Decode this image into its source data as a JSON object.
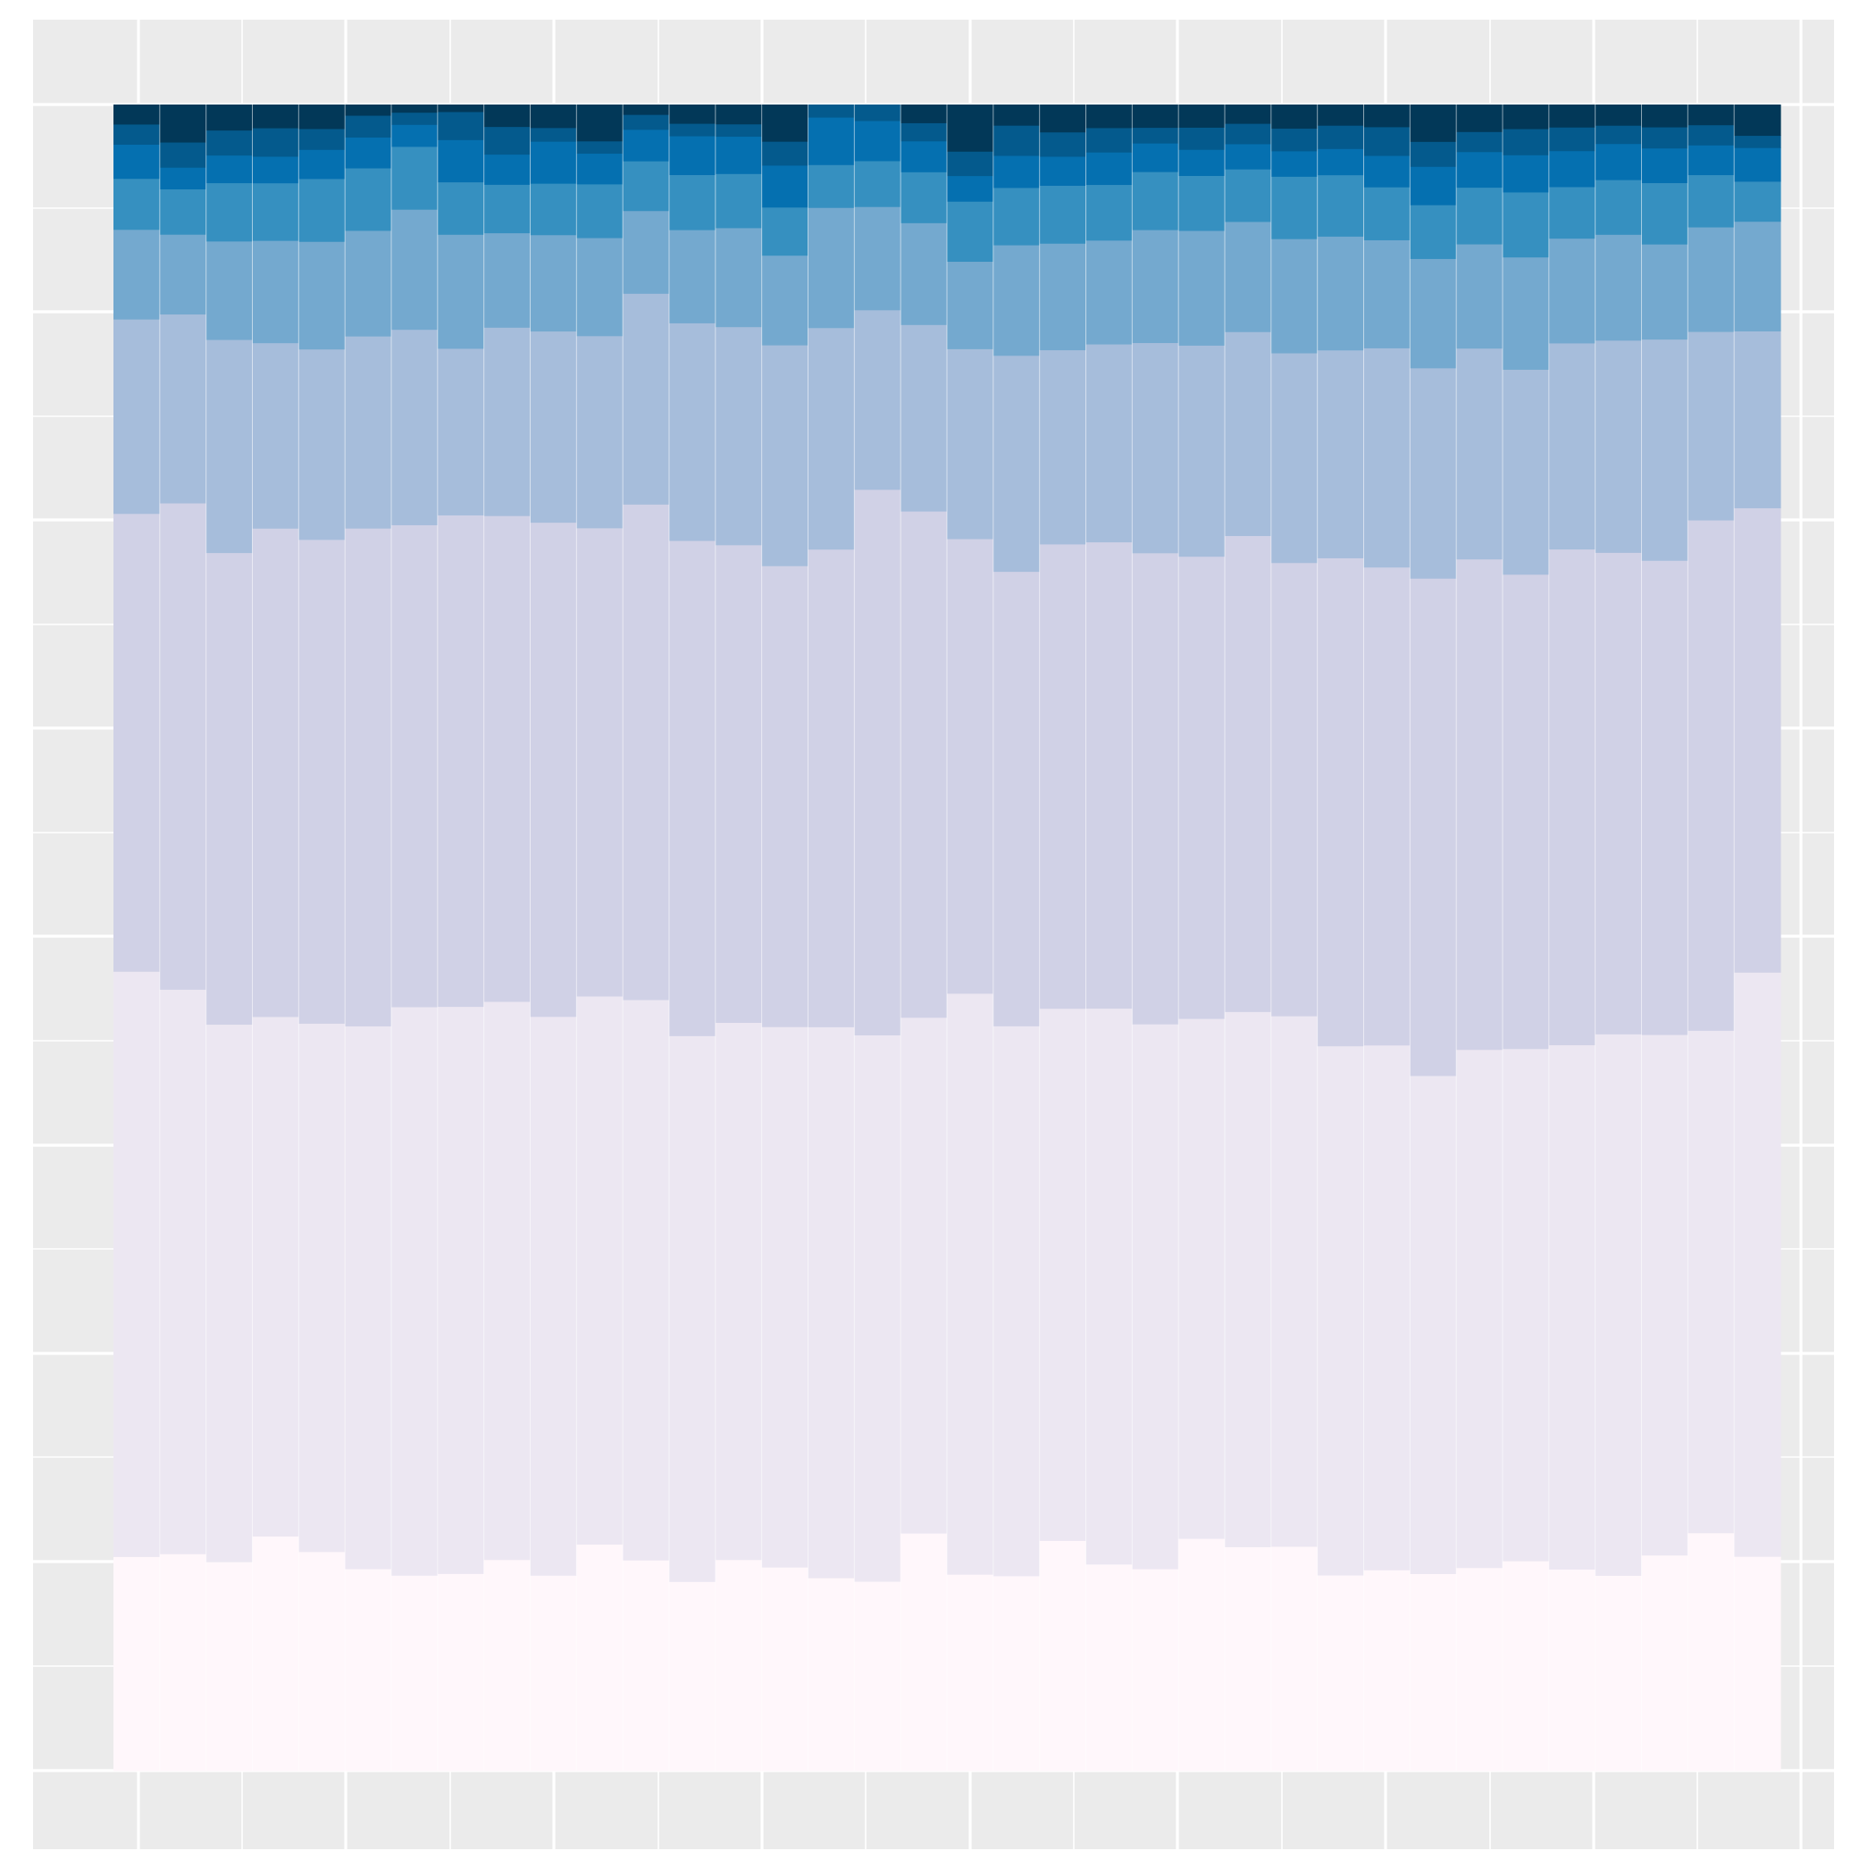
{
  "chart_data": {
    "type": "bar",
    "stacking": "fill",
    "title": "",
    "xlabel": "",
    "ylabel": "",
    "ylim": [
      0,
      1
    ],
    "grid": true,
    "legend": "none",
    "background": "#EBEBEB",
    "gridline_color": "#FFFFFF",
    "x_bins": 36,
    "series": [
      {
        "color": "#FFF7FB",
        "values": [
          0.1285,
          0.1302,
          0.1254,
          0.1394,
          0.1315,
          0.1212,
          0.1173,
          0.1181,
          0.1281,
          0.1173,
          0.1365,
          0.1284,
          0.1151,
          0.1267,
          0.121,
          0.1125,
          0.1137,
          0.14,
          0.1151,
          0.1173,
          0.138,
          0.1236,
          0.1214,
          0.1415,
          0.136,
          0.1367,
          0.1157,
          0.1169,
          0.1161,
          0.1204,
          0.1246,
          0.1193,
          0.1153,
          0.1265,
          0.1402,
          0.1247
        ]
      },
      {
        "color": "#ECE7F2",
        "values": [
          0.3513,
          0.3388,
          0.3226,
          0.3087,
          0.3171,
          0.3258,
          0.3412,
          0.3397,
          0.3387,
          0.3354,
          0.3304,
          0.3415,
          0.3321,
          0.3224,
          0.3211,
          0.3214,
          0.328,
          0.3039,
          0.3403,
          0.3309,
          0.319,
          0.3325,
          0.3276,
          0.3168,
          0.3251,
          0.3233,
          0.3129,
          0.3055,
          0.2934,
          0.3072,
          0.3042,
          0.3104,
          0.3197,
          0.3054,
          0.2961,
          0.3399
        ]
      },
      {
        "color": "#D0D1E6",
        "values": [
          0.2748,
          0.2919,
          0.2831,
          0.2902,
          0.2904,
          0.2988,
          0.2893,
          0.2944,
          0.2948,
          0.2966,
          0.2822,
          0.302,
          0.3013,
          0.2867,
          0.2739,
          0.2786,
          0.3275,
          0.2983,
          0.2663,
          0.2735,
          0.2784,
          0.279,
          0.2833,
          0.2816,
          0.2891,
          0.2762,
          0.2886,
          0.2782,
          0.293,
          0.2908,
          0.2817,
          0.2935,
          0.2843,
          0.2782,
          0.3008,
          0.2702
        ]
      },
      {
        "color": "#A6BDDB",
        "values": [
          0.1167,
          0.1134,
          0.1279,
          0.1102,
          0.1143,
          0.1153,
          0.1173,
          0.0998,
          0.1143,
          0.1148,
          0.1158,
          0.1285,
          0.1324,
          0.1309,
          0.1312,
          0.1292,
          0.1078,
          0.1099,
          0.1113,
          0.13,
          0.1164,
          0.1184,
          0.1264,
          0.1286,
          0.1239,
          0.1278,
          0.1229,
          0.1276,
          0.1239,
          0.125,
          0.1217,
          0.122,
          0.1253,
          0.1298,
          0.1111,
          0.1029
        ]
      },
      {
        "color": "#74A9CF",
        "values": [
          0.0538,
          0.0479,
          0.0591,
          0.0608,
          0.0646,
          0.0634,
          0.0721,
          0.0683,
          0.0573,
          0.0578,
          0.0591,
          0.0504,
          0.0567,
          0.0594,
          0.0533,
          0.0701,
          0.062,
          0.06,
          0.0512,
          0.0665,
          0.0639,
          0.0621,
          0.0679,
          0.0699,
          0.0669,
          0.0696,
          0.0673,
          0.0629,
          0.0644,
          0.0618,
          0.0667,
          0.062,
          0.0625,
          0.0558,
          0.0616,
          0.0638
        ]
      },
      {
        "color": "#3690C0",
        "values": [
          0.0306,
          0.0272,
          0.035,
          0.0342,
          0.0377,
          0.0375,
          0.0377,
          0.0314,
          0.0294,
          0.0309,
          0.0324,
          0.0303,
          0.0335,
          0.0325,
          0.0286,
          0.025,
          0.0275,
          0.03,
          0.0352,
          0.0345,
          0.0347,
          0.0333,
          0.0349,
          0.0335,
          0.0319,
          0.038,
          0.0363,
          0.0308,
          0.0317,
          0.0336,
          0.0386,
          0.0305,
          0.0323,
          0.036,
          0.0308,
          0.0233
        ]
      },
      {
        "color": "#0570B0",
        "values": [
          0.0205,
          0.013,
          0.0166,
          0.0158,
          0.0175,
          0.0185,
          0.0132,
          0.0253,
          0.0183,
          0.0252,
          0.0185,
          0.0192,
          0.0236,
          0.0224,
          0.0249,
          0.0277,
          0.0241,
          0.0182,
          0.015,
          0.0193,
          0.0174,
          0.0194,
          0.0172,
          0.0159,
          0.0153,
          0.0155,
          0.0155,
          0.0183,
          0.0226,
          0.0211,
          0.0221,
          0.0213,
          0.0213,
          0.0203,
          0.0175,
          0.0196
        ]
      },
      {
        "color": "#045A8D",
        "values": [
          0.0121,
          0.0151,
          0.015,
          0.0169,
          0.0125,
          0.0131,
          0.0073,
          0.0168,
          0.0168,
          0.0082,
          0.0074,
          0.0091,
          0.0076,
          0.0074,
          0.0142,
          0.0073,
          0.0096,
          0.0107,
          0.0143,
          0.0182,
          0.0146,
          0.0146,
          0.0094,
          0.0135,
          0.0124,
          0.0138,
          0.0138,
          0.0167,
          0.0147,
          0.0119,
          0.0155,
          0.014,
          0.0108,
          0.0124,
          0.0119,
          0.0071
        ]
      },
      {
        "color": "#023858",
        "values": [
          0.0117,
          0.0225,
          0.0153,
          0.0138,
          0.0144,
          0.0064,
          0.0046,
          0.0042,
          0.0133,
          0.0138,
          0.0219,
          0.006,
          0.0114,
          0.0116,
          0.0218,
          0.0,
          0.0,
          0.0107,
          0.0273,
          0.0124,
          0.0164,
          0.0138,
          0.0137,
          0.0138,
          0.0114,
          0.0144,
          0.0122,
          0.0129,
          0.0217,
          0.016,
          0.0143,
          0.0133,
          0.0122,
          0.0131,
          0.0119,
          0.0179
        ]
      }
    ]
  }
}
